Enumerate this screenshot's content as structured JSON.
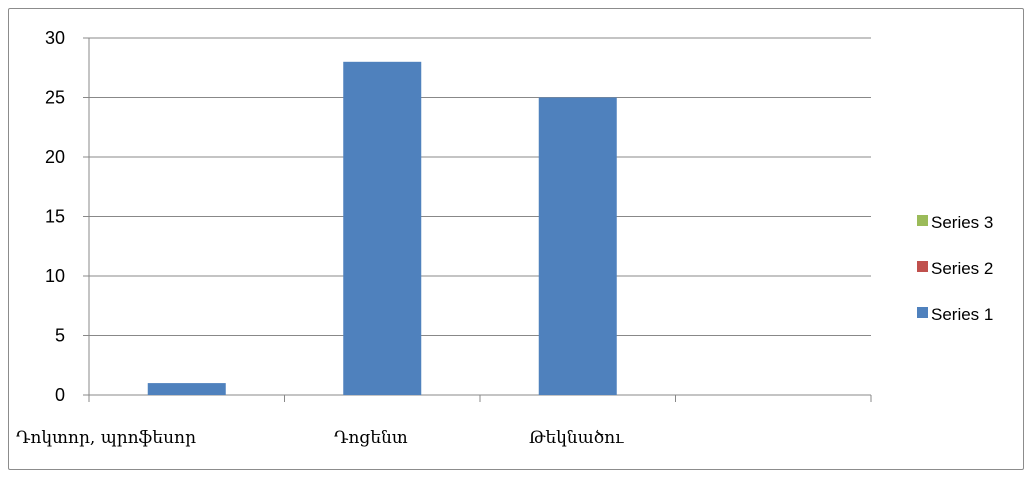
{
  "chart_data": {
    "type": "bar",
    "categories": [
      "Դոկտոր, պրոֆեսոր",
      "Դոցենտ",
      "Թեկնածու",
      ""
    ],
    "series": [
      {
        "name": "Series 1",
        "color": "#4f81bd",
        "values": [
          1,
          28,
          25,
          0
        ]
      },
      {
        "name": "Series 2",
        "color": "#c0504d",
        "values": [
          0,
          0,
          0,
          0
        ]
      },
      {
        "name": "Series 3",
        "color": "#9bbb59",
        "values": [
          0,
          0,
          0,
          0
        ]
      }
    ],
    "ylim": [
      0,
      30
    ],
    "yticks": [
      0,
      5,
      10,
      15,
      20,
      25,
      30
    ],
    "grid": true,
    "legend_position": "right",
    "legend_order": [
      "Series 3",
      "Series 2",
      "Series 1"
    ]
  }
}
